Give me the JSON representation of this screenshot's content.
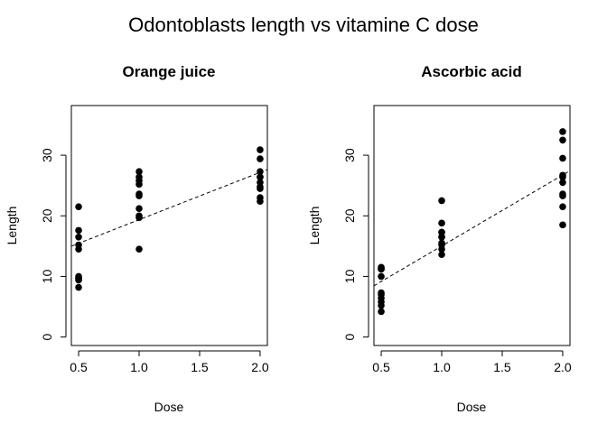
{
  "figure": {
    "title": "Odontoblasts length vs vitamine C dose"
  },
  "chart_data": [
    {
      "type": "scatter",
      "title": "Orange juice",
      "xlabel": "Dose",
      "ylabel": "Length",
      "xlim": [
        0.44,
        2.06
      ],
      "ylim": [
        -1.4,
        38.2
      ],
      "xticks": [
        0.5,
        1.0,
        1.5,
        2.0
      ],
      "xtick_labels": [
        "0.5",
        "1.0",
        "1.5",
        "2.0"
      ],
      "yticks": [
        0,
        10,
        20,
        30
      ],
      "ytick_labels": [
        "0",
        "10",
        "20",
        "30"
      ],
      "grid": false,
      "points": [
        {
          "x": 0.5,
          "y": 15.2
        },
        {
          "x": 0.5,
          "y": 21.5
        },
        {
          "x": 0.5,
          "y": 17.6
        },
        {
          "x": 0.5,
          "y": 9.7
        },
        {
          "x": 0.5,
          "y": 14.5
        },
        {
          "x": 0.5,
          "y": 10.0
        },
        {
          "x": 0.5,
          "y": 8.2
        },
        {
          "x": 0.5,
          "y": 9.4
        },
        {
          "x": 0.5,
          "y": 16.5
        },
        {
          "x": 0.5,
          "y": 9.7
        },
        {
          "x": 1.0,
          "y": 19.7
        },
        {
          "x": 1.0,
          "y": 23.3
        },
        {
          "x": 1.0,
          "y": 23.6
        },
        {
          "x": 1.0,
          "y": 26.4
        },
        {
          "x": 1.0,
          "y": 20.0
        },
        {
          "x": 1.0,
          "y": 25.2
        },
        {
          "x": 1.0,
          "y": 25.8
        },
        {
          "x": 1.0,
          "y": 21.2
        },
        {
          "x": 1.0,
          "y": 14.5
        },
        {
          "x": 1.0,
          "y": 27.3
        },
        {
          "x": 2.0,
          "y": 25.5
        },
        {
          "x": 2.0,
          "y": 26.4
        },
        {
          "x": 2.0,
          "y": 22.4
        },
        {
          "x": 2.0,
          "y": 24.5
        },
        {
          "x": 2.0,
          "y": 24.8
        },
        {
          "x": 2.0,
          "y": 30.9
        },
        {
          "x": 2.0,
          "y": 26.4
        },
        {
          "x": 2.0,
          "y": 27.3
        },
        {
          "x": 2.0,
          "y": 29.4
        },
        {
          "x": 2.0,
          "y": 23.0
        }
      ],
      "trend_line": {
        "style": "dashed",
        "intercept": 11.55,
        "slope": 7.81
      }
    },
    {
      "type": "scatter",
      "title": "Ascorbic acid",
      "xlabel": "Dose",
      "ylabel": "Length",
      "xlim": [
        0.44,
        2.06
      ],
      "ylim": [
        -1.4,
        38.2
      ],
      "xticks": [
        0.5,
        1.0,
        1.5,
        2.0
      ],
      "xtick_labels": [
        "0.5",
        "1.0",
        "1.5",
        "2.0"
      ],
      "yticks": [
        0,
        10,
        20,
        30
      ],
      "ytick_labels": [
        "0",
        "10",
        "20",
        "30"
      ],
      "grid": false,
      "points": [
        {
          "x": 0.5,
          "y": 4.2
        },
        {
          "x": 0.5,
          "y": 11.5
        },
        {
          "x": 0.5,
          "y": 7.3
        },
        {
          "x": 0.5,
          "y": 5.8
        },
        {
          "x": 0.5,
          "y": 6.4
        },
        {
          "x": 0.5,
          "y": 10.0
        },
        {
          "x": 0.5,
          "y": 11.2
        },
        {
          "x": 0.5,
          "y": 11.2
        },
        {
          "x": 0.5,
          "y": 5.2
        },
        {
          "x": 0.5,
          "y": 7.0
        },
        {
          "x": 1.0,
          "y": 16.5
        },
        {
          "x": 1.0,
          "y": 16.5
        },
        {
          "x": 1.0,
          "y": 15.2
        },
        {
          "x": 1.0,
          "y": 17.3
        },
        {
          "x": 1.0,
          "y": 22.5
        },
        {
          "x": 1.0,
          "y": 17.3
        },
        {
          "x": 1.0,
          "y": 13.6
        },
        {
          "x": 1.0,
          "y": 14.5
        },
        {
          "x": 1.0,
          "y": 18.8
        },
        {
          "x": 1.0,
          "y": 15.5
        },
        {
          "x": 2.0,
          "y": 23.6
        },
        {
          "x": 2.0,
          "y": 18.5
        },
        {
          "x": 2.0,
          "y": 33.9
        },
        {
          "x": 2.0,
          "y": 25.5
        },
        {
          "x": 2.0,
          "y": 26.4
        },
        {
          "x": 2.0,
          "y": 32.5
        },
        {
          "x": 2.0,
          "y": 26.7
        },
        {
          "x": 2.0,
          "y": 21.5
        },
        {
          "x": 2.0,
          "y": 23.3
        },
        {
          "x": 2.0,
          "y": 29.5
        }
      ],
      "trend_line": {
        "style": "dashed",
        "intercept": 3.3,
        "slope": 11.72
      }
    }
  ]
}
